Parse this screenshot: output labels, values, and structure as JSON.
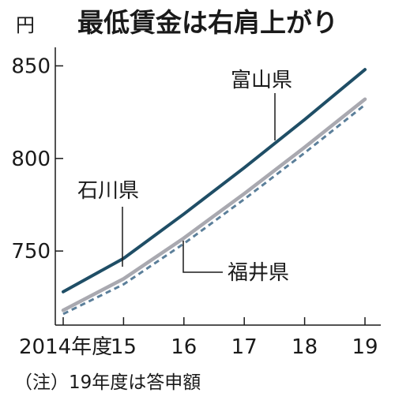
{
  "chart_data": {
    "type": "line",
    "title": "最低賃金は右肩上がり",
    "unit": "円",
    "note": "（注）19年度は答申額",
    "categories": [
      "2014年度",
      "15",
      "16",
      "17",
      "18",
      "19"
    ],
    "x": [
      2014,
      2015,
      2016,
      2017,
      2018,
      2019
    ],
    "ylim": [
      710,
      860
    ],
    "yticks": [
      750,
      800,
      850
    ],
    "grid": false,
    "series": [
      {
        "name": "富山県",
        "values": [
          728,
          746,
          770,
          795,
          821,
          848
        ],
        "color": "#1f4e66",
        "dash": false
      },
      {
        "name": "石川県",
        "values": [
          718,
          735,
          757,
          781,
          806,
          832
        ],
        "color": "#a9a9b0",
        "dash": false
      },
      {
        "name": "福井県",
        "values": [
          716,
          732,
          754,
          778,
          803,
          829
        ],
        "color": "#5b7f9a",
        "dash": true
      }
    ]
  },
  "colors": {
    "background": "#ffffff",
    "text": "#1a1a1a",
    "axis": "#1a1a1a"
  }
}
